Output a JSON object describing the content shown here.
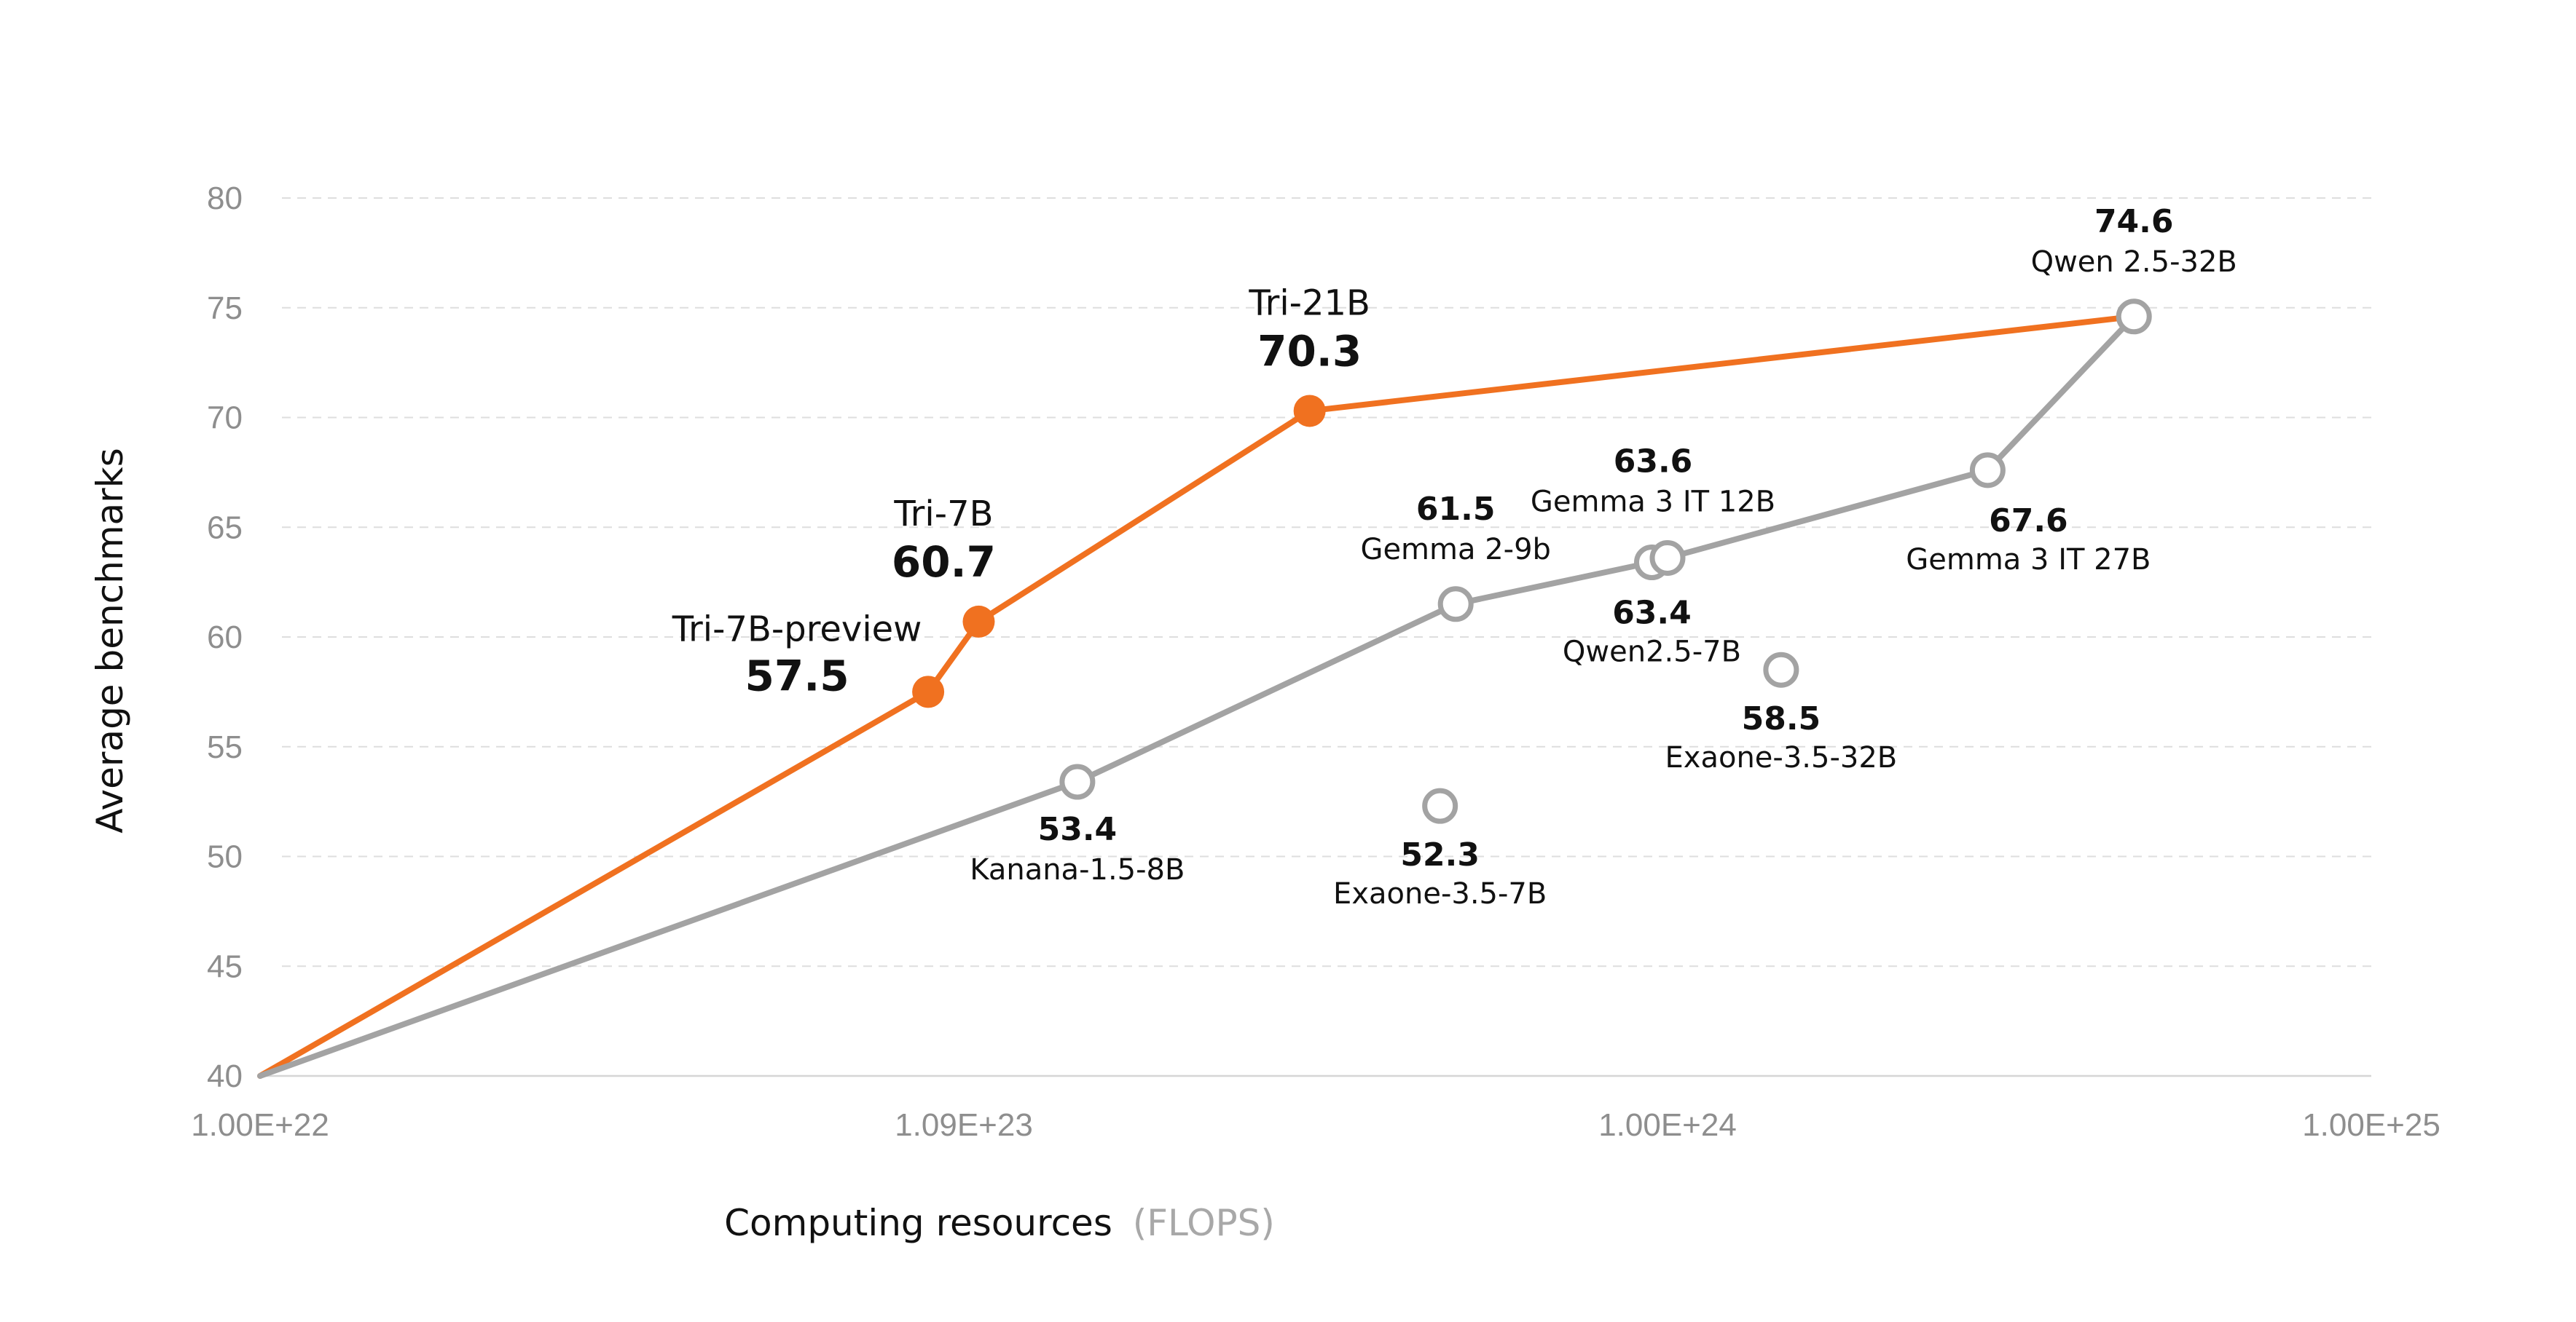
{
  "chart_data": {
    "type": "line",
    "title": "",
    "xlabel": "Computing resources",
    "xlabel_unit": "(FLOPS)",
    "ylabel": "Average benchmarks",
    "xscale": "log",
    "xlim": [
      1e+22,
      1e+25
    ],
    "ylim": [
      40,
      80
    ],
    "xticks": [
      "1.00E+22",
      "1.09E+23",
      "1.00E+24",
      "1.00E+25"
    ],
    "yticks": [
      40,
      45,
      50,
      55,
      60,
      65,
      70,
      75,
      80
    ],
    "grid": true,
    "series": [
      {
        "color": "#f07120",
        "marker": "filled",
        "line": true,
        "points": [
          {
            "x": 1e+22,
            "y": 40,
            "label": "",
            "value_label": ""
          },
          {
            "x": 8.9e+22,
            "y": 57.5,
            "label": "Tri-7B-preview",
            "value_label": "57.5"
          },
          {
            "x": 1.05e+23,
            "y": 60.7,
            "label": "Tri-7B",
            "value_label": "60.7"
          },
          {
            "x": 3.1e+23,
            "y": 70.3,
            "label": "Tri-21B",
            "value_label": "70.3"
          },
          {
            "x": 4.6e+24,
            "y": 74.6,
            "label": "",
            "value_label": ""
          }
        ]
      },
      {
        "color": "#a3a3a3",
        "marker": "hollow",
        "line": true,
        "points": [
          {
            "x": 1e+22,
            "y": 40,
            "label": "",
            "value_label": ""
          },
          {
            "x": 1.45e+23,
            "y": 53.4,
            "label": "Kanana-1.5-8B",
            "value_label": "53.4"
          },
          {
            "x": 5e+23,
            "y": 61.5,
            "label": "Gemma 2-9b",
            "value_label": "61.5"
          },
          {
            "x": 9.5e+23,
            "y": 63.4,
            "label": "Qwen2.5-7B",
            "value_label": "63.4"
          },
          {
            "x": 1e+24,
            "y": 63.6,
            "label": "Gemma 3 IT 12B",
            "value_label": "63.6"
          },
          {
            "x": 2.85e+24,
            "y": 67.6,
            "label": "Gemma 3 IT 27B",
            "value_label": "67.6"
          },
          {
            "x": 4.6e+24,
            "y": 74.6,
            "label": "Qwen 2.5-32B",
            "value_label": "74.6"
          }
        ]
      },
      {
        "color": "#a3a3a3",
        "marker": "hollow",
        "line": false,
        "points": [
          {
            "x": 4.75e+23,
            "y": 52.3,
            "label": "Exaone-3.5-7B",
            "value_label": "52.3"
          },
          {
            "x": 1.45e+24,
            "y": 58.5,
            "label": "Exaone-3.5-32B",
            "value_label": "58.5"
          }
        ]
      }
    ]
  }
}
